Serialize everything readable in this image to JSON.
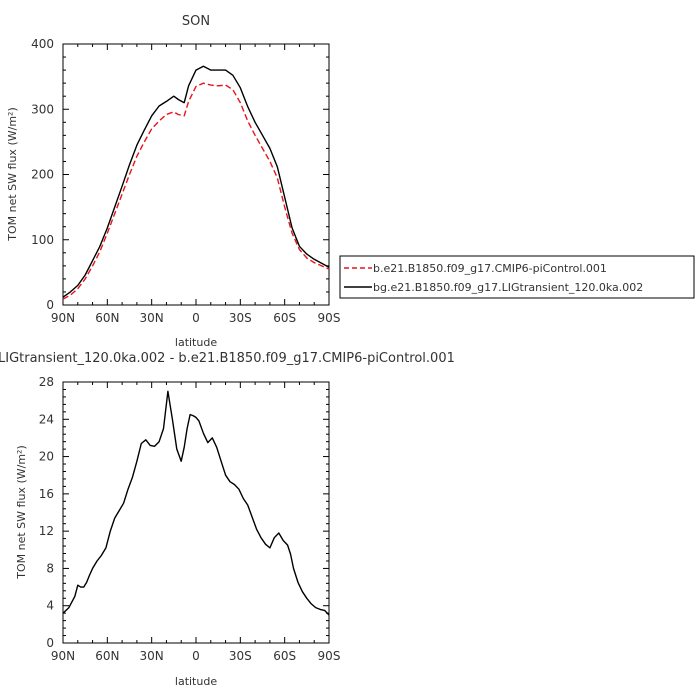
{
  "chart_data": [
    {
      "type": "line",
      "title": "SON",
      "xlabel": "latitude",
      "ylabel": "TOM net SW flux (W/m²)",
      "x_ticks": [
        "90N",
        "60N",
        "30N",
        "0",
        "30S",
        "60S",
        "90S"
      ],
      "x_tick_values": [
        90,
        60,
        30,
        0,
        -30,
        -60,
        -90
      ],
      "xlim": [
        90,
        -90
      ],
      "y_ticks": [
        "0",
        "100",
        "200",
        "300",
        "400"
      ],
      "y_tick_values": [
        0,
        100,
        200,
        300,
        400
      ],
      "ylim": [
        0,
        400
      ],
      "legend_position": "right",
      "series": [
        {
          "name": "b.e21.B1850.f09_g17.CMIP6-piControl.001",
          "color": "#e8141b",
          "dash": true,
          "x": [
            90,
            85,
            80,
            75,
            70,
            65,
            60,
            55,
            50,
            45,
            40,
            35,
            30,
            25,
            20,
            15,
            12,
            8,
            5,
            0,
            -5,
            -10,
            -15,
            -20,
            -25,
            -30,
            -35,
            -40,
            -45,
            -50,
            -55,
            -60,
            -65,
            -70,
            -75,
            -80,
            -85,
            -90
          ],
          "y": [
            9,
            15,
            25,
            40,
            60,
            82,
            110,
            140,
            170,
            200,
            228,
            250,
            270,
            282,
            292,
            296,
            292,
            290,
            312,
            335,
            340,
            337,
            336,
            337,
            330,
            310,
            282,
            260,
            240,
            220,
            195,
            150,
            110,
            85,
            72,
            65,
            60,
            55
          ]
        },
        {
          "name": "bg.e21.B1850.f09_g17.LIGtransient_120.0ka.002",
          "color": "#000000",
          "dash": false,
          "x": [
            90,
            85,
            80,
            75,
            70,
            65,
            60,
            55,
            50,
            45,
            40,
            35,
            30,
            25,
            20,
            15,
            12,
            8,
            5,
            0,
            -5,
            -10,
            -15,
            -20,
            -25,
            -30,
            -35,
            -40,
            -45,
            -50,
            -55,
            -60,
            -65,
            -70,
            -75,
            -80,
            -85,
            -90
          ],
          "y": [
            12,
            20,
            30,
            46,
            68,
            90,
            118,
            150,
            182,
            215,
            245,
            268,
            290,
            305,
            312,
            320,
            315,
            310,
            336,
            360,
            366,
            360,
            360,
            360,
            352,
            333,
            304,
            280,
            260,
            240,
            212,
            165,
            118,
            90,
            78,
            70,
            64,
            58
          ]
        }
      ]
    },
    {
      "type": "line",
      "title": "LIGtransient_120.0ka.002 - b.e21.B1850.f09_g17.CMIP6-piControl.001",
      "xlabel": "latitude",
      "ylabel": "TOM net SW flux (W/m²)",
      "x_ticks": [
        "90N",
        "60N",
        "30N",
        "0",
        "30S",
        "60S",
        "90S"
      ],
      "x_tick_values": [
        90,
        60,
        30,
        0,
        -30,
        -60,
        -90
      ],
      "xlim": [
        90,
        -90
      ],
      "y_ticks": [
        "0",
        "4",
        "8",
        "12",
        "16",
        "20",
        "24",
        "28"
      ],
      "y_tick_values": [
        0,
        4,
        8,
        12,
        16,
        20,
        24,
        28
      ],
      "ylim": [
        0,
        28
      ],
      "series": [
        {
          "color": "#000000",
          "x": [
            90,
            86,
            82,
            80,
            78,
            76,
            74,
            72,
            70,
            67,
            64,
            61,
            58,
            55,
            52,
            49,
            46,
            43,
            40,
            37,
            34,
            31,
            28,
            25,
            22,
            19,
            16,
            13,
            10,
            8,
            6,
            4,
            2,
            0,
            -2,
            -5,
            -8,
            -11,
            -14,
            -17,
            -20,
            -23,
            -26,
            -29,
            -32,
            -35,
            -38,
            -41,
            -44,
            -47,
            -50,
            -53,
            -56,
            -59,
            -62,
            -64,
            -66,
            -69,
            -72,
            -75,
            -78,
            -81,
            -84,
            -87,
            -90
          ],
          "y": [
            3.2,
            3.8,
            5.0,
            6.2,
            6.0,
            6.0,
            6.5,
            7.3,
            8.0,
            8.8,
            9.4,
            10.2,
            12.0,
            13.4,
            14.2,
            15.0,
            16.5,
            17.8,
            19.5,
            21.4,
            21.8,
            21.2,
            21.1,
            21.6,
            23.0,
            27.0,
            24.0,
            20.8,
            19.5,
            21.0,
            23.0,
            24.5,
            24.4,
            24.2,
            23.8,
            22.5,
            21.5,
            22.0,
            21.0,
            19.5,
            18.0,
            17.3,
            17.0,
            16.5,
            15.5,
            14.8,
            13.5,
            12.2,
            11.3,
            10.6,
            10.2,
            11.3,
            11.8,
            11.0,
            10.5,
            9.5,
            8.0,
            6.5,
            5.5,
            4.8,
            4.2,
            3.8,
            3.6,
            3.5,
            3.0
          ]
        }
      ]
    }
  ]
}
